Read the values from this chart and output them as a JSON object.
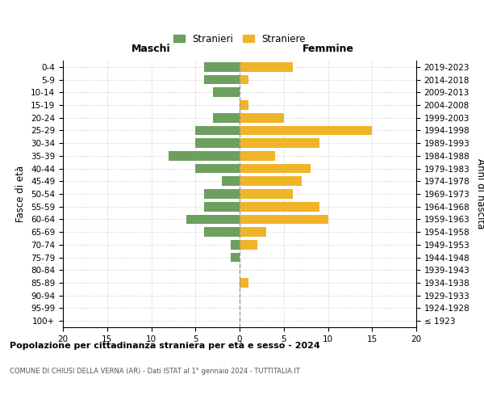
{
  "age_groups": [
    "100+",
    "95-99",
    "90-94",
    "85-89",
    "80-84",
    "75-79",
    "70-74",
    "65-69",
    "60-64",
    "55-59",
    "50-54",
    "45-49",
    "40-44",
    "35-39",
    "30-34",
    "25-29",
    "20-24",
    "15-19",
    "10-14",
    "5-9",
    "0-4"
  ],
  "birth_years": [
    "≤ 1923",
    "1924-1928",
    "1929-1933",
    "1934-1938",
    "1939-1943",
    "1944-1948",
    "1949-1953",
    "1954-1958",
    "1959-1963",
    "1964-1968",
    "1969-1973",
    "1974-1978",
    "1979-1983",
    "1984-1988",
    "1989-1993",
    "1994-1998",
    "1999-2003",
    "2004-2008",
    "2009-2013",
    "2014-2018",
    "2019-2023"
  ],
  "maschi": [
    0,
    0,
    0,
    0,
    0,
    1,
    1,
    4,
    6,
    4,
    4,
    2,
    5,
    8,
    5,
    5,
    3,
    0,
    3,
    4,
    4
  ],
  "femmine": [
    0,
    0,
    0,
    1,
    0,
    0,
    2,
    3,
    10,
    9,
    6,
    7,
    8,
    4,
    9,
    15,
    5,
    1,
    0,
    1,
    6
  ],
  "maschi_color": "#6d9f5e",
  "femmine_color": "#f0b429",
  "center_line_color": "#999999",
  "grid_color": "#cccccc",
  "background_color": "#ffffff",
  "title": "Popolazione per cittadinanza straniera per età e sesso - 2024",
  "subtitle": "COMUNE DI CHIUSI DELLA VERNA (AR) - Dati ISTAT al 1° gennaio 2024 - TUTTITALIA.IT",
  "ylabel_left": "Fasce di età",
  "ylabel_right": "Anni di nascita",
  "legend_stranieri": "Stranieri",
  "legend_straniere": "Straniere",
  "xlim": 20,
  "maschi_label": "Maschi",
  "femmine_label": "Femmine"
}
